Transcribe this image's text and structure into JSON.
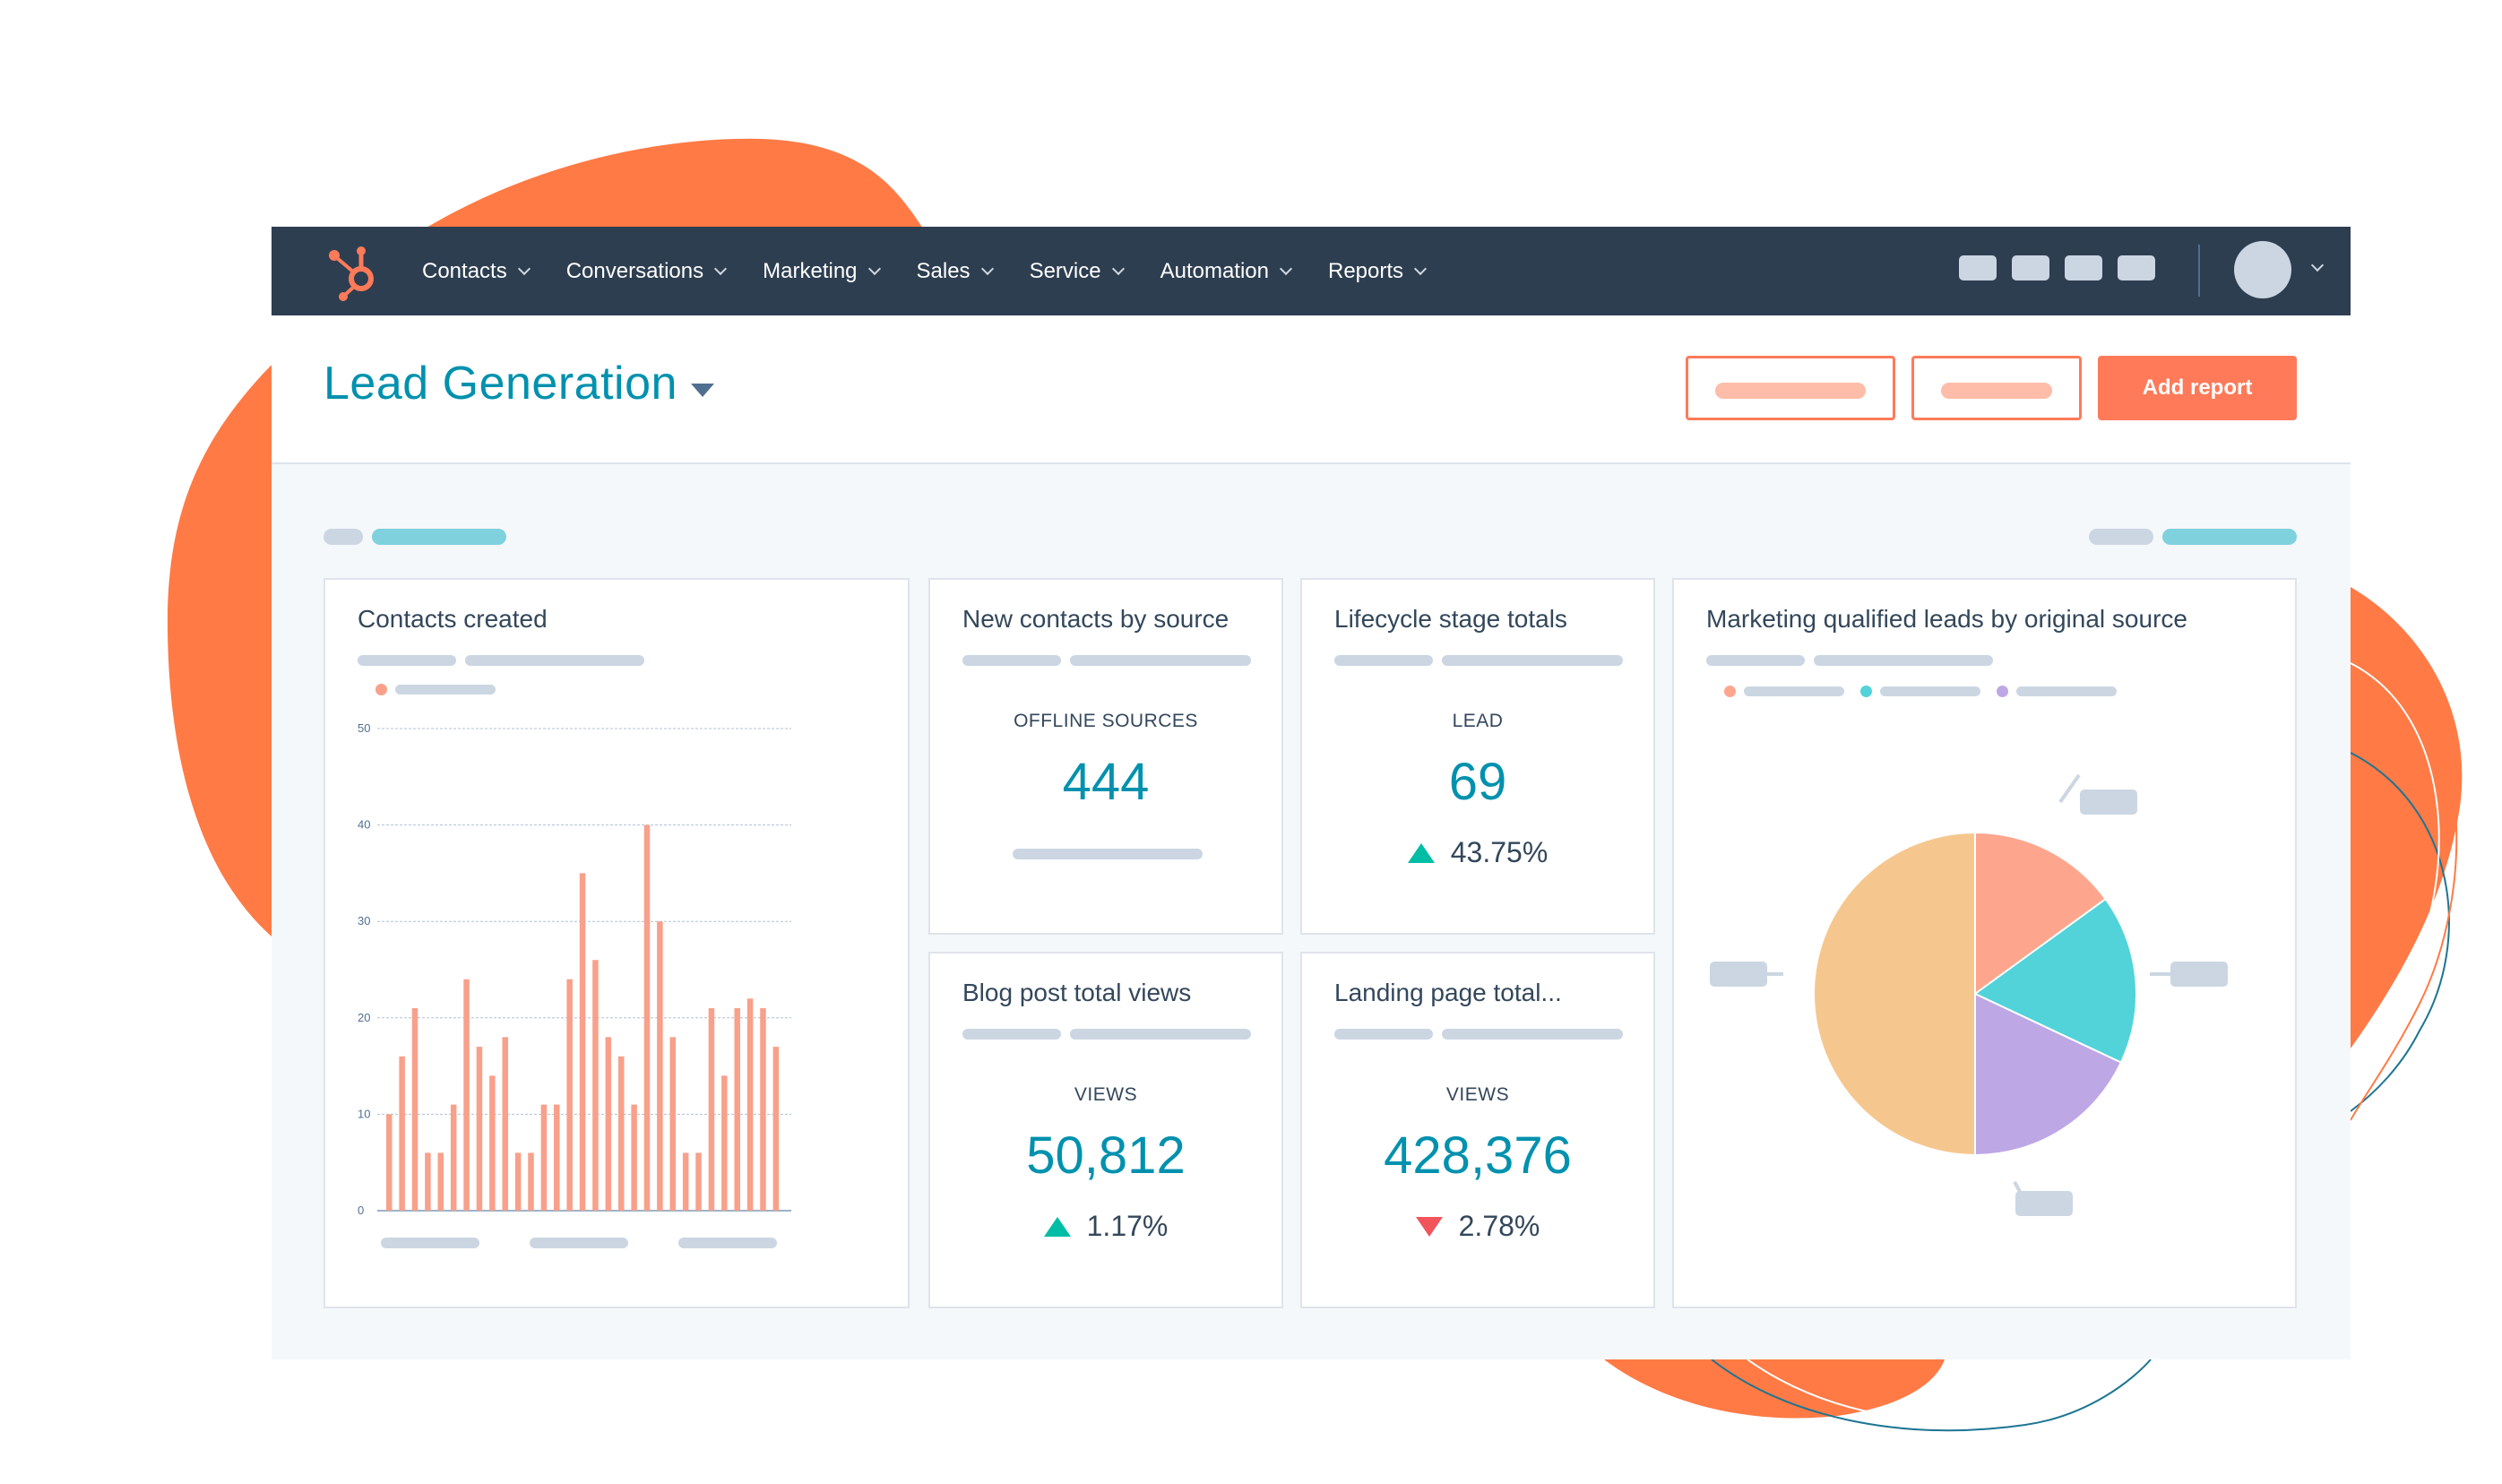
{
  "nav": {
    "items": [
      {
        "label": "Contacts"
      },
      {
        "label": "Conversations"
      },
      {
        "label": "Marketing"
      },
      {
        "label": "Sales"
      },
      {
        "label": "Service"
      },
      {
        "label": "Automation"
      },
      {
        "label": "Reports"
      }
    ]
  },
  "header": {
    "title": "Lead Generation",
    "add_report_label": "Add report"
  },
  "colors": {
    "accent": "#ff7a59",
    "nav_bg": "#2d3e50",
    "title": "#0091ae",
    "up": "#00bda5",
    "down": "#f2545b"
  },
  "cards": {
    "contacts_created": {
      "title": "Contacts created"
    },
    "new_contacts": {
      "title": "New contacts by source",
      "label": "OFFLINE SOURCES",
      "value": "444"
    },
    "lifecycle": {
      "title": "Lifecycle stage totals",
      "label": "LEAD",
      "value": "69",
      "change": "43.75%",
      "direction": "up"
    },
    "blog_views": {
      "title": "Blog post total views",
      "label": "VIEWS",
      "value": "50,812",
      "change": "1.17%",
      "direction": "up"
    },
    "landing_views": {
      "title": "Landing page total...",
      "label": "VIEWS",
      "value": "428,376",
      "change": "2.78%",
      "direction": "down"
    },
    "mql": {
      "title": "Marketing qualified leads by original source"
    }
  },
  "chart_data": [
    {
      "type": "bar",
      "title": "Contacts created",
      "ylim": [
        0,
        50
      ],
      "yticks": [
        "0",
        "10",
        "20",
        "30",
        "40",
        "50"
      ],
      "grid": true,
      "color": "#f8a08a",
      "values": [
        10,
        16,
        21,
        6,
        6,
        11,
        24,
        17,
        14,
        18,
        6,
        6,
        11,
        11,
        24,
        35,
        26,
        18,
        16,
        11,
        40,
        30,
        18,
        6,
        6,
        21,
        14,
        21,
        22,
        21,
        17
      ]
    },
    {
      "type": "pie",
      "title": "Marketing qualified leads by original source",
      "slices": [
        {
          "value": 15,
          "color": "#fea58e"
        },
        {
          "value": 17,
          "color": "#51d3d9"
        },
        {
          "value": 18,
          "color": "#bea7e5"
        },
        {
          "value": 50,
          "color": "#f5c78e"
        }
      ]
    }
  ]
}
